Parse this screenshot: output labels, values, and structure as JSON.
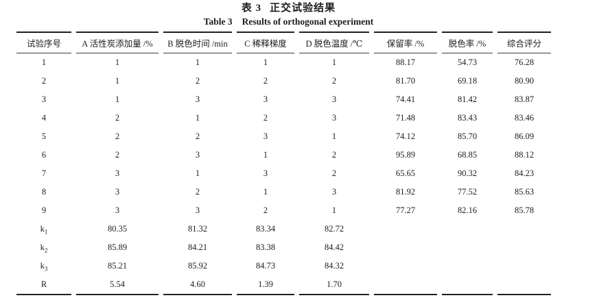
{
  "title": {
    "zh_label": "表 3",
    "zh_text": "正交试验结果",
    "en_label": "Table 3",
    "en_text": "Results of orthogonal experiment"
  },
  "table": {
    "columns": [
      "试验序号",
      "A 活性炭添加量 /%",
      "B 脱色时间 /min",
      "C 稀释梯度",
      "D 脱色温度 /℃",
      "保留率 /%",
      "脱色率 /%",
      "综合评分"
    ],
    "rows": [
      {
        "head": "1",
        "sub": "",
        "values": [
          "1",
          "1",
          "1",
          "1",
          "88.17",
          "54.73",
          "76.28"
        ]
      },
      {
        "head": "2",
        "sub": "",
        "values": [
          "1",
          "2",
          "2",
          "2",
          "81.70",
          "69.18",
          "80.90"
        ]
      },
      {
        "head": "3",
        "sub": "",
        "values": [
          "1",
          "3",
          "3",
          "3",
          "74.41",
          "81.42",
          "83.87"
        ]
      },
      {
        "head": "4",
        "sub": "",
        "values": [
          "2",
          "1",
          "2",
          "3",
          "71.48",
          "83.43",
          "83.46"
        ]
      },
      {
        "head": "5",
        "sub": "",
        "values": [
          "2",
          "2",
          "3",
          "1",
          "74.12",
          "85.70",
          "86.09"
        ]
      },
      {
        "head": "6",
        "sub": "",
        "values": [
          "2",
          "3",
          "1",
          "2",
          "95.89",
          "68.85",
          "88.12"
        ]
      },
      {
        "head": "7",
        "sub": "",
        "values": [
          "3",
          "1",
          "3",
          "2",
          "65.65",
          "90.32",
          "84.23"
        ]
      },
      {
        "head": "8",
        "sub": "",
        "values": [
          "3",
          "2",
          "1",
          "3",
          "81.92",
          "77.52",
          "85.63"
        ]
      },
      {
        "head": "9",
        "sub": "",
        "values": [
          "3",
          "3",
          "2",
          "1",
          "77.27",
          "82.16",
          "85.78"
        ]
      },
      {
        "head": "k",
        "sub": "1",
        "values": [
          "80.35",
          "81.32",
          "83.34",
          "82.72",
          "",
          "",
          ""
        ]
      },
      {
        "head": "k",
        "sub": "2",
        "values": [
          "85.89",
          "84.21",
          "83.38",
          "84.42",
          "",
          "",
          ""
        ]
      },
      {
        "head": "k",
        "sub": "3",
        "values": [
          "85.21",
          "85.92",
          "84.73",
          "84.32",
          "",
          "",
          ""
        ]
      },
      {
        "head": "R",
        "sub": "",
        "values": [
          "5.54",
          "4.60",
          "1.39",
          "1.70",
          "",
          "",
          ""
        ]
      }
    ]
  },
  "colors": {
    "background": "#ffffff",
    "text": "#1d1d1d",
    "rule_heavy": "#1f1f1f",
    "rule_light": "#3a3a3a"
  }
}
